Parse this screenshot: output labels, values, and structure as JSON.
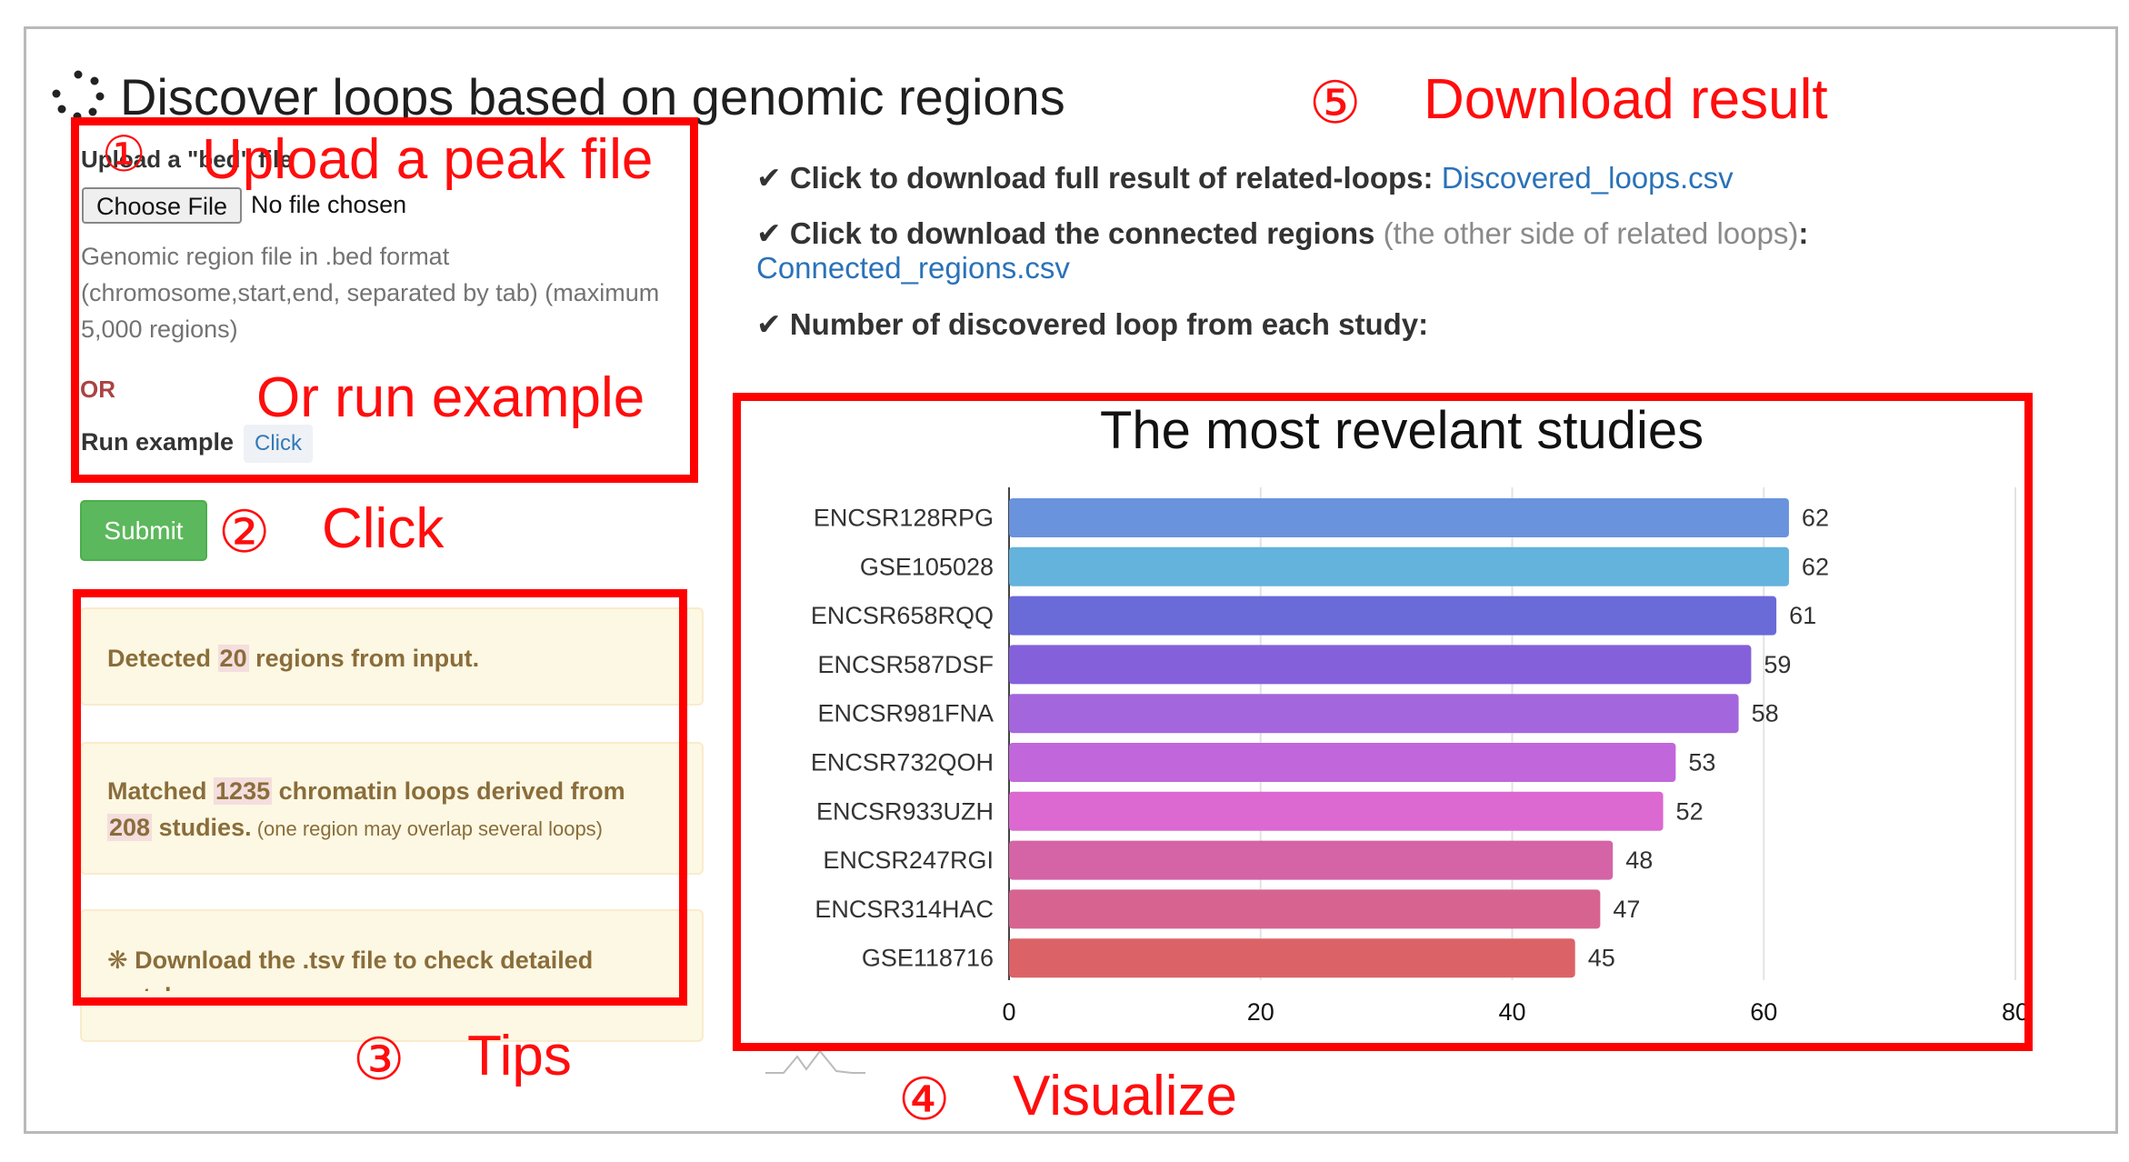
{
  "header": {
    "title": "Discover loops based on genomic regions"
  },
  "upload": {
    "label": "Upload a \"bed\" file",
    "choose_button": "Choose File",
    "no_file": "No file chosen",
    "help_lines": [
      "Genomic region file in .bed format",
      "(chromosome,start,end, separated by tab) (maximum",
      "5,000 regions)"
    ],
    "or": "OR",
    "run_example_label": "Run example",
    "run_example_button": "Click"
  },
  "submit_label": "Submit",
  "tips": {
    "detected_prefix": "Detected ",
    "detected_count": "20",
    "detected_suffix": " regions from input.",
    "matched_prefix": "Matched ",
    "matched_count": "1235",
    "matched_middle": " chromatin loops derived from",
    "studies_count": "208",
    "studies_suffix": " studies.",
    "studies_note": " (one region may overlap several loops)",
    "download_tip": "❋ Download the .tsv file to check detailed",
    "download_tip_cont": "matches"
  },
  "download": {
    "full_text": "Click to download full result of related-loops: ",
    "full_link": "Discovered_loops.csv",
    "connected_text": "Click to download the connected regions ",
    "connected_note": "(the other side of related loops)",
    "connected_colon": ":",
    "connected_link": "Connected_regions.csv",
    "count_text": "Number of discovered loop from each study:"
  },
  "annotations": {
    "step1": "①",
    "step1_text": "Upload a peak file",
    "or_run": "Or run example",
    "step2": "②",
    "step2_text": "Click",
    "step3": "③",
    "step3_text": "Tips",
    "step4": "④",
    "step4_text": "Visualize",
    "step5": "⑤",
    "step5_text": "Download result"
  },
  "chart_data": {
    "type": "bar",
    "orientation": "horizontal",
    "title": "The most revelant studies",
    "categories": [
      "ENCSR128RPG",
      "GSE105028",
      "ENCSR658RQQ",
      "ENCSR587DSF",
      "ENCSR981FNA",
      "ENCSR732QOH",
      "ENCSR933UZH",
      "ENCSR247RGI",
      "ENCSR314HAC",
      "GSE118716"
    ],
    "values": [
      62,
      62,
      61,
      59,
      58,
      53,
      52,
      48,
      47,
      45
    ],
    "xlim": [
      0,
      80
    ],
    "xticks": [
      "0",
      "20",
      "40",
      "60",
      "80"
    ],
    "grid": true,
    "colors": [
      "#6a93dd",
      "#63b3dc",
      "#6a6ad9",
      "#8560db",
      "#a466dc",
      "#c266dc",
      "#dc68d2",
      "#d464a6",
      "#d76490",
      "#db6367"
    ]
  }
}
